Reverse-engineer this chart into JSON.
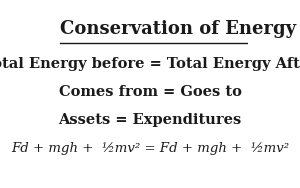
{
  "title": "Conservation of Energy",
  "line1": "Total Energy before = Total Energy After",
  "line2": "Comes from = Goes to",
  "line3": "Assets = Expenditures",
  "formula": "Fd + mgh +  ½mv² = Fd + mgh +  ½mv²",
  "bg_color": "#ffffff",
  "text_color": "#1a1a1a",
  "title_fontsize": 13,
  "body_fontsize": 10.5,
  "formula_fontsize": 9.5
}
